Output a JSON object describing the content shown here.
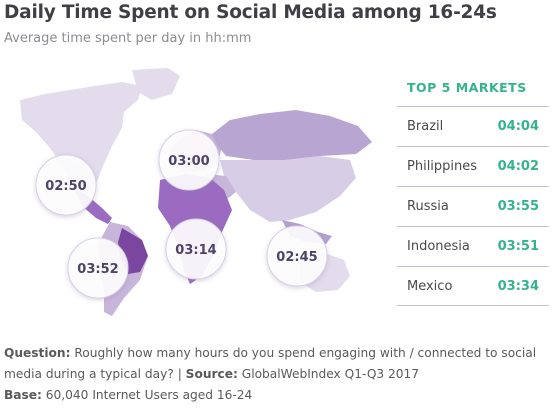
{
  "header": {
    "title": "Daily Time Spent on Social Media among 16-24s",
    "subtitle": "Average time spent per day in hh:mm"
  },
  "colors": {
    "accent": "#35b28e",
    "map_light": "#e3dcec",
    "map_mid": "#c7b5da",
    "map_dark": "#9a6bc0",
    "map_darkest": "#7b469f"
  },
  "chart_data": {
    "type": "table",
    "title": "Daily Time Spent on Social Media among 16-24s",
    "subtitle": "Average time spent per day in hh:mm",
    "regions": [
      {
        "label": "02:50"
      },
      {
        "label": "03:00"
      },
      {
        "label": "03:52"
      },
      {
        "label": "03:14"
      },
      {
        "label": "02:45"
      }
    ],
    "top_markets_title": "TOP 5 MARKETS",
    "top_markets": [
      {
        "country": "Brazil",
        "value": "04:04"
      },
      {
        "country": "Philippines",
        "value": "04:02"
      },
      {
        "country": "Russia",
        "value": "03:55"
      },
      {
        "country": "Indonesia",
        "value": "03:51"
      },
      {
        "country": "Mexico",
        "value": "03:34"
      }
    ]
  },
  "footer": {
    "question_label": "Question:",
    "question_text": "Roughly how many hours do you spend engaging with / connected to social media during a typical day?",
    "separator": "|",
    "source_label": "Source:",
    "source_text": "GlobalWebIndex Q1-Q3 2017",
    "base_label": "Base:",
    "base_text": "60,040 Internet Users aged 16-24"
  }
}
